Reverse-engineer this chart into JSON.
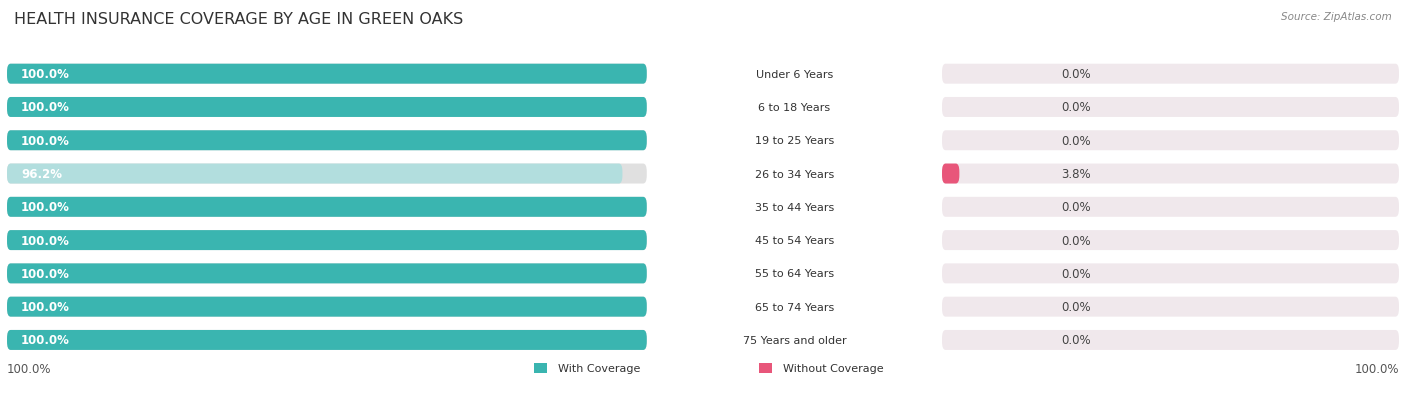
{
  "title": "HEALTH INSURANCE COVERAGE BY AGE IN GREEN OAKS",
  "source": "Source: ZipAtlas.com",
  "categories": [
    "Under 6 Years",
    "6 to 18 Years",
    "19 to 25 Years",
    "26 to 34 Years",
    "35 to 44 Years",
    "45 to 54 Years",
    "55 to 64 Years",
    "65 to 74 Years",
    "75 Years and older"
  ],
  "with_coverage": [
    100.0,
    100.0,
    100.0,
    96.2,
    100.0,
    100.0,
    100.0,
    100.0,
    100.0
  ],
  "without_coverage": [
    0.0,
    0.0,
    0.0,
    3.8,
    0.0,
    0.0,
    0.0,
    0.0,
    0.0
  ],
  "color_with": "#3ab5b0",
  "color_with_light": "#b2dede",
  "color_without": "#f7aec8",
  "color_without_accent": "#e8567a",
  "bar_bg_left": "#e0e0e0",
  "bar_bg_right": "#f0e8ec",
  "title_fontsize": 11.5,
  "legend_with": "With Coverage",
  "legend_without": "Without Coverage",
  "left_label": "100.0%",
  "right_label": "100.0%"
}
